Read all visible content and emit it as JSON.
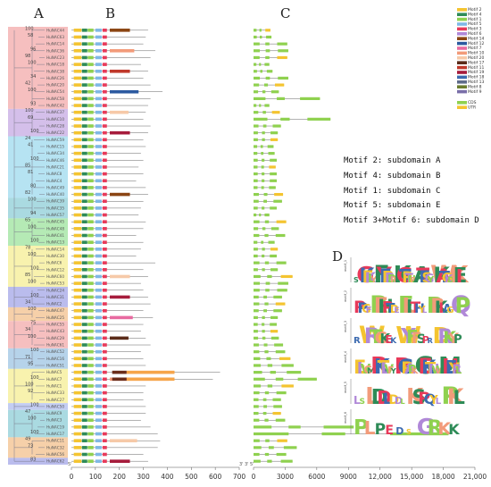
{
  "panel_letters": [
    "A",
    "B",
    "C",
    "D"
  ],
  "genes": [
    "HuNAC44",
    "HuNAC63",
    "HuNAC14",
    "HuNAC36",
    "HuNAC23",
    "HuNAC18",
    "HuNAC38",
    "HuNAC26",
    "HuNAC20",
    "HuNAC54",
    "HuNAC58",
    "HuNAC42",
    "HuNAC37",
    "HuNAC10",
    "HuNAC28",
    "HuNAC22",
    "HuNAC59",
    "HuNAC15",
    "HuNAC34",
    "HuNAC46",
    "HuNAC21",
    "HuNAC8",
    "HuNAC4",
    "HuNAC49",
    "HuNAC40",
    "HuNAC39",
    "HuNAC35",
    "HuNAC57",
    "HuNAC45",
    "HuNAC48",
    "HuNAC41",
    "HuNAC13",
    "HuNAC14",
    "HuNAC30",
    "HuNAC6",
    "HuNAC12",
    "HuNAC60",
    "HuNAC53",
    "HuNAC24",
    "HuNAC31",
    "HuNAC2",
    "HuNAC47",
    "HuNAC25",
    "HuNAC55",
    "HuNAC43",
    "HuNAC29",
    "HuNAC61",
    "HuNAC52",
    "HuNAC16",
    "HuNAC51",
    "HuNAC5",
    "HuNAC7",
    "HuNAC1",
    "HuNAC33",
    "HuNAC27",
    "HuNAC50",
    "HuNAC9",
    "HuNAC3",
    "HuNAC19",
    "HuNAC17",
    "HuNAC11",
    "HuNAC32",
    "HuNAC56",
    "HuNAC62"
  ],
  "clade_colors": [
    "#f4b4b4",
    "#cdb4e6",
    "#a9def0",
    "#9bd3dc",
    "#a8e6a8",
    "#f7f0a0",
    "#aeb0ea",
    "#f5c89a",
    "#f4b4b4",
    "#a9cbe6",
    "#f7f0a0",
    "#b9c4f0",
    "#9bd3dc",
    "#f5c89a",
    "#aeb0ea"
  ],
  "bootstrap_values": [
    "100",
    "58",
    "96",
    "98",
    "100",
    "34",
    "42",
    "100",
    "93",
    "100",
    "69",
    "100",
    "24",
    "41",
    "100",
    "85",
    "81",
    "80",
    "82",
    "100",
    "94",
    "65",
    "100",
    "100",
    "78",
    "100",
    "100",
    "85",
    "100",
    "100",
    "34",
    "100",
    "75",
    "34",
    "100",
    "100",
    "71",
    "95",
    "100",
    "100",
    "92",
    "100",
    "47",
    "100",
    "100",
    "49",
    "73",
    "83"
  ],
  "motifs": [
    {
      "name": "Motif 2",
      "color": "#f4c430"
    },
    {
      "name": "Motif 4",
      "color": "#2e8b57"
    },
    {
      "name": "Motif 1",
      "color": "#8fd14f"
    },
    {
      "name": "Motif 5",
      "color": "#7fb8e6"
    },
    {
      "name": "Motif 3",
      "color": "#e83a5a"
    },
    {
      "name": "Motif 6",
      "color": "#b088d8"
    },
    {
      "name": "Motif 14",
      "color": "#8b4513"
    },
    {
      "name": "Motif 12",
      "color": "#2c5aa0"
    },
    {
      "name": "Motif 7",
      "color": "#e86aa0"
    },
    {
      "name": "Motif 10",
      "color": "#f29b7a"
    },
    {
      "name": "Motif 20",
      "color": "#f6c9a8"
    },
    {
      "name": "Motif 17",
      "color": "#5b2c1a"
    },
    {
      "name": "Motif 11",
      "color": "#c0392b"
    },
    {
      "name": "Motif 19",
      "color": "#a61c3c"
    },
    {
      "name": "Motif 18",
      "color": "#3d6bb0"
    },
    {
      "name": "Motif 13",
      "color": "#5f6b8a"
    },
    {
      "name": "Motif 8",
      "color": "#6b7c2e"
    },
    {
      "name": "Motif 9",
      "color": "#7a6fa8"
    }
  ],
  "gene_structure_legend": [
    {
      "name": "CDS",
      "color": "#8fd14f"
    },
    {
      "name": "UTR",
      "color": "#f4c430"
    }
  ],
  "motif_notes": [
    "Motif 2: subdomain A",
    "Motif 4: subdomain B",
    "Motif 1: subdomain C",
    "Motif 5: subdomain E",
    "Motif 3+Motif 6: subdomain D"
  ],
  "axis_b": {
    "ticks": [
      "0",
      "100",
      "200",
      "300",
      "400",
      "500",
      "600",
      "700"
    ],
    "prime5": "5'",
    "prime3": "3'"
  },
  "axis_c": {
    "ticks": [
      "0",
      "3000",
      "6000",
      "9000",
      "12,000",
      "15,000",
      "18,000",
      "21,000"
    ],
    "prime5": "5'",
    "prime3": "3'"
  },
  "protein_lengths": [
    320,
    310,
    300,
    350,
    330,
    290,
    320,
    300,
    330,
    380,
    330,
    320,
    310,
    300,
    330,
    320,
    300,
    310,
    290,
    300,
    280,
    300,
    270,
    310,
    320,
    300,
    290,
    280,
    310,
    300,
    270,
    300,
    290,
    270,
    350,
    300,
    320,
    290,
    300,
    320,
    330,
    300,
    340,
    300,
    290,
    310,
    330,
    290,
    300,
    310,
    620,
    590,
    310,
    300,
    300,
    310,
    310,
    290,
    330,
    360,
    370,
    360,
    300,
    320
  ],
  "gene_lengths": [
    1600,
    1700,
    3200,
    3300,
    3200,
    1500,
    1800,
    3300,
    2900,
    2400,
    6300,
    1500,
    2500,
    7300,
    2600,
    2300,
    2300,
    1900,
    2000,
    2200,
    2100,
    2200,
    2200,
    2100,
    2800,
    2700,
    2200,
    1500,
    3100,
    2400,
    3000,
    2000,
    2300,
    2200,
    3100,
    2300,
    3700,
    3300,
    3200,
    2700,
    3000,
    2700,
    2300,
    2200,
    2300,
    2400,
    2800,
    3000,
    3500,
    3800,
    4500,
    6000,
    3800,
    3100,
    2600,
    2700,
    2600,
    3000,
    9500,
    18500,
    3200,
    4100,
    3100,
    3700
  ],
  "logos": [
    {
      "label": "motif_1",
      "seq": "SGKEKLYFYEPRDRKGTRTNRATESGYWKATGKDKEI"
    },
    {
      "label": "motif_2",
      "seq": "PPGFRFHPTDEELITHYLRRKIAGQP"
    },
    {
      "label": "motif_3",
      "seq": "RWRTGKEKWYFFSPRDRKYP"
    },
    {
      "label": "motif_4",
      "seq": "EIVGMRKTLVFYRGRAPKGEKTNWVMHEYRL"
    },
    {
      "label": "motif_5",
      "seq": "LSLDDLDDLKSPQYLPKL"
    },
    {
      "label": "motif_6",
      "seq": "PLPEDSGRKK"
    }
  ]
}
